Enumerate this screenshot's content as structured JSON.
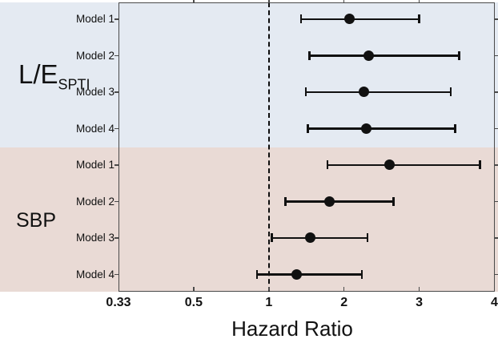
{
  "figure": {
    "xlabel": "Hazard Ratio"
  },
  "colors": {
    "lespti_band": "#e4eaf2",
    "sbp_band": "#e9dad5",
    "marker": "#111111",
    "axis": "#4a4a4a",
    "reference_line": "#0d0d0d"
  },
  "chart_data": {
    "type": "forest",
    "xlabel": "Hazard Ratio",
    "x_ticks": [
      0.33,
      0.5,
      1,
      2,
      3,
      4
    ],
    "x_tick_labels": [
      "0.33",
      "0.5",
      "1",
      "2",
      "3",
      "4"
    ],
    "x_scale": "labeled ticks evenly spaced; values interpolated piecewise-linearly between ticks",
    "reference_line_value": 1,
    "legend_position": "none",
    "grid": false,
    "groups": [
      {
        "label": "L/E",
        "label_subscript": "SPTI",
        "band_color": "#e4eaf2",
        "rows": [
          {
            "model": "Model 1",
            "hr": 2.07,
            "ci_low": 1.43,
            "ci_high": 3.0
          },
          {
            "model": "Model 2",
            "hr": 2.33,
            "ci_low": 1.54,
            "ci_high": 3.53
          },
          {
            "model": "Model 3",
            "hr": 2.26,
            "ci_low": 1.49,
            "ci_high": 3.42
          },
          {
            "model": "Model 4",
            "hr": 2.3,
            "ci_low": 1.52,
            "ci_high": 3.48
          }
        ]
      },
      {
        "label": "SBP",
        "label_subscript": "",
        "band_color": "#e9dad5",
        "rows": [
          {
            "model": "Model 1",
            "hr": 2.61,
            "ci_low": 1.78,
            "ci_high": 3.81
          },
          {
            "model": "Model 2",
            "hr": 1.81,
            "ci_low": 1.22,
            "ci_high": 2.66
          },
          {
            "model": "Model 3",
            "hr": 1.55,
            "ci_low": 1.04,
            "ci_high": 2.31
          },
          {
            "model": "Model 4",
            "hr": 1.37,
            "ci_low": 0.92,
            "ci_high": 2.24
          }
        ]
      }
    ]
  }
}
